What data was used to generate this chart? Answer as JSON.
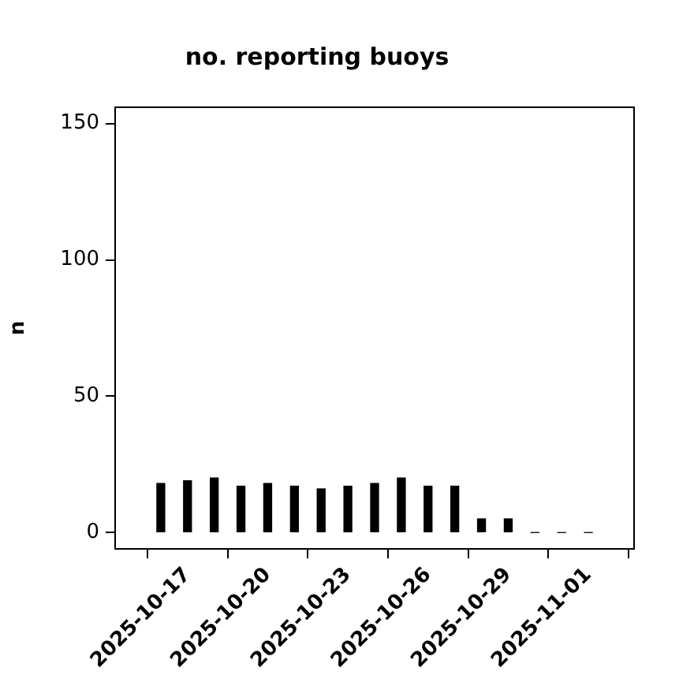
{
  "chart_data": {
    "type": "bar",
    "title": "no. reporting buoys",
    "ylabel": "n",
    "x": [
      "2025-10-16",
      "2025-10-17",
      "2025-10-18",
      "2025-10-19",
      "2025-10-20",
      "2025-10-21",
      "2025-10-22",
      "2025-10-23",
      "2025-10-24",
      "2025-10-25",
      "2025-10-26",
      "2025-10-27",
      "2025-10-28",
      "2025-10-29",
      "2025-10-30",
      "2025-10-31",
      "2025-11-01"
    ],
    "values": [
      18,
      19,
      20,
      17,
      18,
      17,
      16,
      17,
      18,
      20,
      17,
      17,
      5,
      5,
      0,
      0,
      0
    ],
    "color": "#000000",
    "xlim": [
      "2025-10-14T07:00",
      "2025-11-02T17:00"
    ],
    "xticks": [
      "2025-10-17",
      "2025-10-20",
      "2025-10-23",
      "2025-10-26",
      "2025-10-29",
      "2025-11-01"
    ],
    "ylim": [
      -6,
      156
    ],
    "yticks": [
      0,
      50,
      100,
      150
    ],
    "grid": false,
    "legend": false
  }
}
